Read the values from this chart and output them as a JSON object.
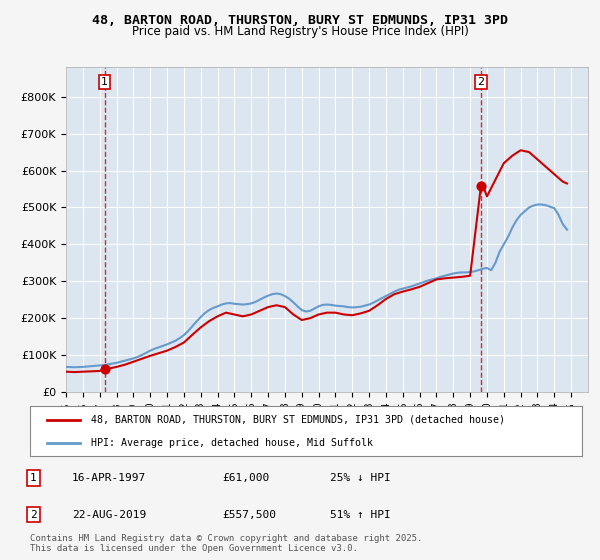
{
  "title_line1": "48, BARTON ROAD, THURSTON, BURY ST EDMUNDS, IP31 3PD",
  "title_line2": "Price paid vs. HM Land Registry's House Price Index (HPI)",
  "ylabel": "",
  "xlim_start": 1995.0,
  "xlim_end": 2026.0,
  "ylim_min": 0,
  "ylim_max": 880000,
  "sale1_date": 1997.29,
  "sale1_price": 61000,
  "sale1_label": "1",
  "sale2_date": 2019.64,
  "sale2_price": 557500,
  "sale2_label": "2",
  "legend_line1": "48, BARTON ROAD, THURSTON, BURY ST EDMUNDS, IP31 3PD (detached house)",
  "legend_line2": "HPI: Average price, detached house, Mid Suffolk",
  "annotation1": "1    16-APR-1997         £61,000         25% ↓ HPI",
  "annotation2": "2    22-AUG-2019         £557,500       51% ↑ HPI",
  "footer": "Contains HM Land Registry data © Crown copyright and database right 2025.\nThis data is licensed under the Open Government Licence v3.0.",
  "bg_color": "#e8eef5",
  "plot_bg_color": "#dce6f0",
  "red_line_color": "#cc0000",
  "blue_line_color": "#6699cc",
  "sale_marker_color": "#cc0000",
  "vline_color": "#cc0000",
  "grid_color": "#ffffff",
  "yticks": [
    0,
    100000,
    200000,
    300000,
    400000,
    500000,
    600000,
    700000,
    800000
  ],
  "ytick_labels": [
    "£0",
    "£100K",
    "£200K",
    "£300K",
    "£400K",
    "£500K",
    "£600K",
    "£700K",
    "£800K"
  ],
  "hpi_years": [
    1995.0,
    1995.25,
    1995.5,
    1995.75,
    1996.0,
    1996.25,
    1996.5,
    1996.75,
    1997.0,
    1997.25,
    1997.5,
    1997.75,
    1998.0,
    1998.25,
    1998.5,
    1998.75,
    1999.0,
    1999.25,
    1999.5,
    1999.75,
    2000.0,
    2000.25,
    2000.5,
    2000.75,
    2001.0,
    2001.25,
    2001.5,
    2001.75,
    2002.0,
    2002.25,
    2002.5,
    2002.75,
    2003.0,
    2003.25,
    2003.5,
    2003.75,
    2004.0,
    2004.25,
    2004.5,
    2004.75,
    2005.0,
    2005.25,
    2005.5,
    2005.75,
    2006.0,
    2006.25,
    2006.5,
    2006.75,
    2007.0,
    2007.25,
    2007.5,
    2007.75,
    2008.0,
    2008.25,
    2008.5,
    2008.75,
    2009.0,
    2009.25,
    2009.5,
    2009.75,
    2010.0,
    2010.25,
    2010.5,
    2010.75,
    2011.0,
    2011.25,
    2011.5,
    2011.75,
    2012.0,
    2012.25,
    2012.5,
    2012.75,
    2013.0,
    2013.25,
    2013.5,
    2013.75,
    2014.0,
    2014.25,
    2014.5,
    2014.75,
    2015.0,
    2015.25,
    2015.5,
    2015.75,
    2016.0,
    2016.25,
    2016.5,
    2016.75,
    2017.0,
    2017.25,
    2017.5,
    2017.75,
    2018.0,
    2018.25,
    2018.5,
    2018.75,
    2019.0,
    2019.25,
    2019.5,
    2019.75,
    2020.0,
    2020.25,
    2020.5,
    2020.75,
    2021.0,
    2021.25,
    2021.5,
    2021.75,
    2022.0,
    2022.25,
    2022.5,
    2022.75,
    2023.0,
    2023.25,
    2023.5,
    2023.75,
    2024.0,
    2024.25,
    2024.5,
    2024.75
  ],
  "hpi_values": [
    68000,
    67500,
    67000,
    67500,
    68000,
    69000,
    70000,
    71000,
    72000,
    73000,
    75000,
    77000,
    79000,
    82000,
    85000,
    88000,
    91000,
    95000,
    100000,
    106000,
    112000,
    117000,
    121000,
    125000,
    129000,
    134000,
    139000,
    146000,
    154000,
    165000,
    178000,
    191000,
    203000,
    214000,
    222000,
    228000,
    232000,
    237000,
    240000,
    241000,
    239000,
    238000,
    237000,
    238000,
    240000,
    244000,
    250000,
    256000,
    261000,
    265000,
    267000,
    265000,
    260000,
    253000,
    243000,
    232000,
    222000,
    218000,
    220000,
    226000,
    232000,
    236000,
    237000,
    236000,
    234000,
    233000,
    232000,
    230000,
    229000,
    230000,
    231000,
    234000,
    237000,
    242000,
    248000,
    254000,
    260000,
    266000,
    272000,
    277000,
    280000,
    283000,
    286000,
    290000,
    294000,
    298000,
    302000,
    305000,
    308000,
    312000,
    315000,
    318000,
    321000,
    323000,
    324000,
    324000,
    325000,
    327000,
    330000,
    334000,
    336000,
    330000,
    350000,
    380000,
    400000,
    420000,
    445000,
    465000,
    480000,
    490000,
    500000,
    505000,
    508000,
    508000,
    506000,
    502000,
    498000,
    480000,
    455000,
    440000
  ],
  "red_line_years": [
    1995.0,
    1995.5,
    1996.0,
    1996.5,
    1997.0,
    1997.29,
    1997.5,
    1998.0,
    1998.5,
    1999.0,
    1999.5,
    2000.0,
    2000.5,
    2001.0,
    2001.5,
    2002.0,
    2002.5,
    2003.0,
    2003.5,
    2004.0,
    2004.5,
    2005.0,
    2005.5,
    2006.0,
    2006.5,
    2007.0,
    2007.5,
    2008.0,
    2008.5,
    2009.0,
    2009.5,
    2010.0,
    2010.5,
    2011.0,
    2011.5,
    2012.0,
    2012.5,
    2013.0,
    2013.5,
    2014.0,
    2014.5,
    2015.0,
    2015.5,
    2016.0,
    2016.5,
    2017.0,
    2017.5,
    2018.0,
    2018.5,
    2019.0,
    2019.64,
    2019.75,
    2020.0,
    2020.5,
    2021.0,
    2021.5,
    2022.0,
    2022.5,
    2023.0,
    2023.5,
    2024.0,
    2024.5,
    2024.75
  ],
  "red_line_values": [
    55000,
    54000,
    55000,
    56000,
    57000,
    61000,
    63000,
    68000,
    74000,
    82000,
    90000,
    98000,
    105000,
    112000,
    122000,
    134000,
    155000,
    175000,
    192000,
    205000,
    215000,
    210000,
    205000,
    210000,
    220000,
    230000,
    235000,
    230000,
    210000,
    195000,
    200000,
    210000,
    215000,
    215000,
    210000,
    208000,
    213000,
    220000,
    235000,
    252000,
    265000,
    272000,
    278000,
    285000,
    295000,
    305000,
    308000,
    310000,
    312000,
    315000,
    557500,
    560000,
    530000,
    575000,
    620000,
    640000,
    655000,
    650000,
    630000,
    610000,
    590000,
    570000,
    565000
  ]
}
